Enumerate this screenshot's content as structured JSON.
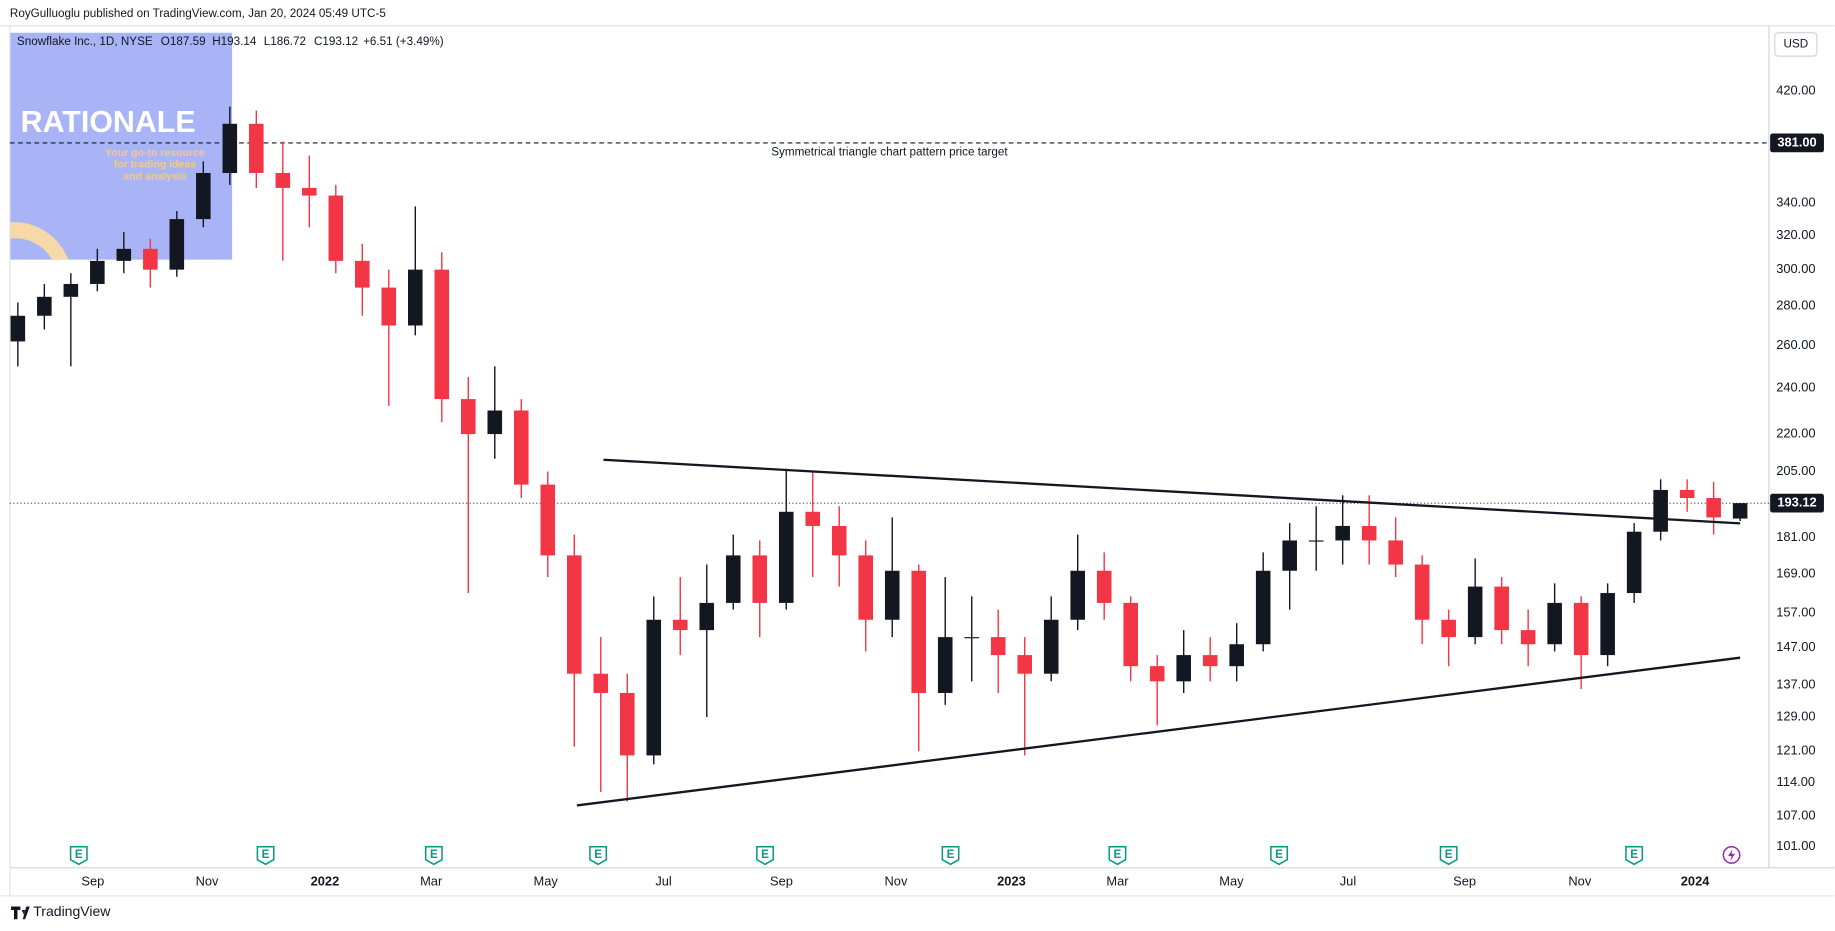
{
  "header": {
    "publisher": "RoyGulluoglu published on TradingView.com, Jan 20, 2024 05:49 UTC-5",
    "symbol": "Snowflake Inc., 1D, NYSE",
    "open": "O187.59",
    "high": "H193.14",
    "low": "L186.72",
    "close": "C193.12",
    "change": "+6.51 (+3.49%)",
    "currency": "USD"
  },
  "footer": {
    "brand": "TradingView"
  },
  "watermark": {
    "title": "RATIONALE",
    "lines": [
      "Your go-to resource",
      "for trading ideas",
      "and analysis"
    ]
  },
  "chart_data": {
    "type": "candlestick",
    "y_scale": "log",
    "grid": false,
    "up_color": "#131722",
    "down_color": "#f23645",
    "x": [
      0,
      1,
      2,
      3,
      4,
      5,
      6,
      7,
      8,
      9,
      10,
      11,
      12,
      13,
      14,
      15,
      16,
      17,
      18,
      19,
      20,
      21,
      22,
      23,
      24,
      25,
      26,
      27,
      28,
      29,
      30,
      31,
      32,
      33,
      34,
      35,
      36,
      37,
      38,
      39,
      40,
      41,
      42,
      43,
      44,
      45,
      46,
      47,
      48,
      49,
      50,
      51,
      52,
      53,
      54,
      55,
      56,
      57,
      58,
      59,
      60,
      61,
      62,
      63,
      64,
      65
    ],
    "open": [
      262,
      275,
      285,
      292,
      305,
      312,
      300,
      330,
      360,
      395,
      360,
      350,
      345,
      305,
      290,
      270,
      300,
      235,
      220,
      230,
      200,
      175,
      140,
      135,
      120,
      155,
      152,
      160,
      175,
      160,
      190,
      185,
      175,
      155,
      170,
      135,
      150,
      150,
      145,
      140,
      155,
      170,
      160,
      142,
      138,
      145,
      142,
      148,
      170,
      180,
      180,
      185,
      180,
      172,
      155,
      150,
      165,
      152,
      148,
      160,
      145,
      163,
      183,
      198,
      195,
      187.59
    ],
    "high": [
      282,
      292,
      298,
      312,
      322,
      318,
      335,
      368,
      408,
      405,
      382,
      372,
      352,
      315,
      300,
      338,
      310,
      245,
      250,
      235,
      205,
      182,
      150,
      140,
      162,
      168,
      172,
      182,
      180,
      206,
      205,
      192,
      180,
      188,
      172,
      168,
      162,
      158,
      150,
      162,
      182,
      176,
      162,
      145,
      152,
      150,
      154,
      176,
      186,
      192,
      196,
      196,
      188,
      175,
      158,
      174,
      168,
      158,
      166,
      162,
      166,
      186,
      202,
      202,
      201,
      193.14
    ],
    "low": [
      250,
      268,
      250,
      288,
      298,
      290,
      296,
      325,
      352,
      350,
      305,
      325,
      298,
      275,
      232,
      265,
      225,
      163,
      210,
      195,
      168,
      122,
      112,
      110,
      118,
      145,
      129,
      158,
      150,
      158,
      168,
      165,
      146,
      150,
      121,
      132,
      138,
      135,
      120,
      138,
      152,
      155,
      138,
      127,
      135,
      138,
      138,
      146,
      158,
      170,
      172,
      172,
      168,
      148,
      142,
      148,
      148,
      142,
      146,
      136,
      142,
      160,
      180,
      190,
      182,
      186.72
    ],
    "close": [
      275,
      285,
      292,
      305,
      312,
      300,
      330,
      360,
      395,
      360,
      350,
      345,
      305,
      290,
      270,
      300,
      235,
      220,
      230,
      200,
      175,
      140,
      135,
      120,
      155,
      152,
      160,
      175,
      160,
      190,
      185,
      175,
      155,
      170,
      135,
      150,
      150,
      145,
      140,
      155,
      170,
      160,
      142,
      138,
      145,
      142,
      148,
      170,
      180,
      180,
      185,
      180,
      172,
      155,
      150,
      165,
      152,
      148,
      160,
      145,
      163,
      183,
      198,
      195,
      188,
      193.12
    ],
    "xlim": [
      -0.3,
      66
    ],
    "xticks": [
      {
        "value": 2.83,
        "label": "Sep"
      },
      {
        "value": 7.14,
        "label": "Nov"
      },
      {
        "value": 11.59,
        "label": "2022"
      },
      {
        "value": 15.6,
        "label": "Mar"
      },
      {
        "value": 19.92,
        "label": "May"
      },
      {
        "value": 24.37,
        "label": "Jul"
      },
      {
        "value": 28.82,
        "label": "Sep"
      },
      {
        "value": 33.14,
        "label": "Nov"
      },
      {
        "value": 37.5,
        "label": "2023"
      },
      {
        "value": 41.5,
        "label": "Mar"
      },
      {
        "value": 45.8,
        "label": "May"
      },
      {
        "value": 50.2,
        "label": "Jul"
      },
      {
        "value": 54.6,
        "label": "Sep"
      },
      {
        "value": 58.95,
        "label": "Nov"
      },
      {
        "value": 63.3,
        "label": "2024"
      }
    ],
    "ylim": [
      97.5,
      469
    ],
    "yticks": [
      {
        "value": 101,
        "label": "101.00"
      },
      {
        "value": 107,
        "label": "107.00"
      },
      {
        "value": 114,
        "label": "114.00"
      },
      {
        "value": 121,
        "label": "121.00"
      },
      {
        "value": 129,
        "label": "129.00"
      },
      {
        "value": 137,
        "label": "137.00"
      },
      {
        "value": 147,
        "label": "147.00"
      },
      {
        "value": 157,
        "label": "157.00"
      },
      {
        "value": 169,
        "label": "169.00"
      },
      {
        "value": 181,
        "label": "181.00"
      },
      {
        "value": 205,
        "label": "205.00"
      },
      {
        "value": 220,
        "label": "220.00"
      },
      {
        "value": 240,
        "label": "240.00"
      },
      {
        "value": 260,
        "label": "260.00"
      },
      {
        "value": 280,
        "label": "280.00"
      },
      {
        "value": 300,
        "label": "300.00"
      },
      {
        "value": 320,
        "label": "320.00"
      },
      {
        "value": 340,
        "label": "340.00"
      },
      {
        "value": 420,
        "label": "420.00"
      }
    ],
    "last_price": {
      "value": 193.12,
      "label": "193.12"
    },
    "target": {
      "value": 381,
      "label": "381.00",
      "text": "Symmetrical triangle chart pattern price target"
    },
    "trendlines": [
      {
        "x": [
          22.1,
          65.0
        ],
        "y": [
          209.6,
          185.9
        ]
      },
      {
        "x": [
          21.1,
          65.0
        ],
        "y": [
          109.2,
          144.3
        ]
      }
    ],
    "events": [
      {
        "x": 2.3,
        "label": "E"
      },
      {
        "x": 9.35,
        "label": "E"
      },
      {
        "x": 15.7,
        "label": "E"
      },
      {
        "x": 21.9,
        "label": "E"
      },
      {
        "x": 28.2,
        "label": "E"
      },
      {
        "x": 35.2,
        "label": "E"
      },
      {
        "x": 41.5,
        "label": "E"
      },
      {
        "x": 47.6,
        "label": "E"
      },
      {
        "x": 54.0,
        "label": "E"
      },
      {
        "x": 61.0,
        "label": "E"
      }
    ]
  }
}
